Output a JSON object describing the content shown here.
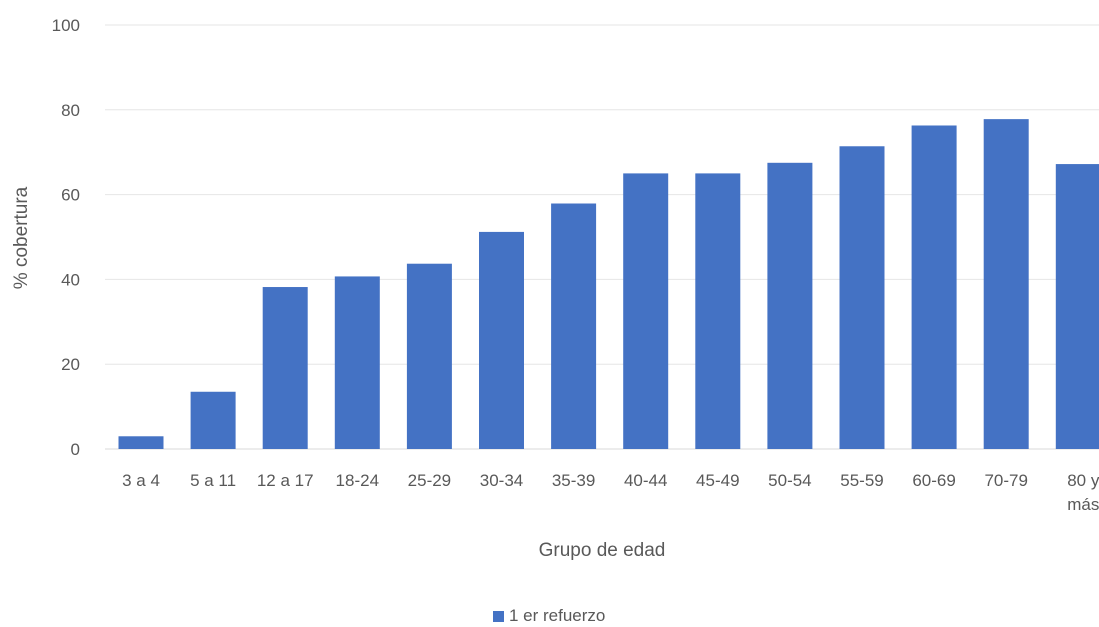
{
  "chart_data": {
    "type": "bar",
    "title": "",
    "xlabel": "Grupo de edad",
    "ylabel": "% cobertura",
    "ylim": [
      0,
      100
    ],
    "yticks": [
      0,
      20,
      40,
      60,
      80,
      100
    ],
    "grid": true,
    "legend_position": "bottom",
    "categories": [
      [
        "3 a 4"
      ],
      [
        "5 a 11"
      ],
      [
        "12 a 17"
      ],
      [
        "18-24"
      ],
      [
        "25-29"
      ],
      [
        "30-34"
      ],
      [
        "35-39"
      ],
      [
        "40-44"
      ],
      [
        "45-49"
      ],
      [
        "50-54"
      ],
      [
        "55-59"
      ],
      [
        "60-69"
      ],
      [
        "70-79"
      ],
      [
        "80 y",
        "más"
      ]
    ],
    "series": [
      {
        "name": "1 er refuerzo",
        "color": "#4472C4",
        "values": [
          3,
          13.5,
          38.2,
          40.7,
          43.7,
          51.2,
          57.9,
          65.0,
          65.0,
          67.5,
          71.4,
          76.3,
          77.8,
          67.2
        ]
      }
    ]
  }
}
